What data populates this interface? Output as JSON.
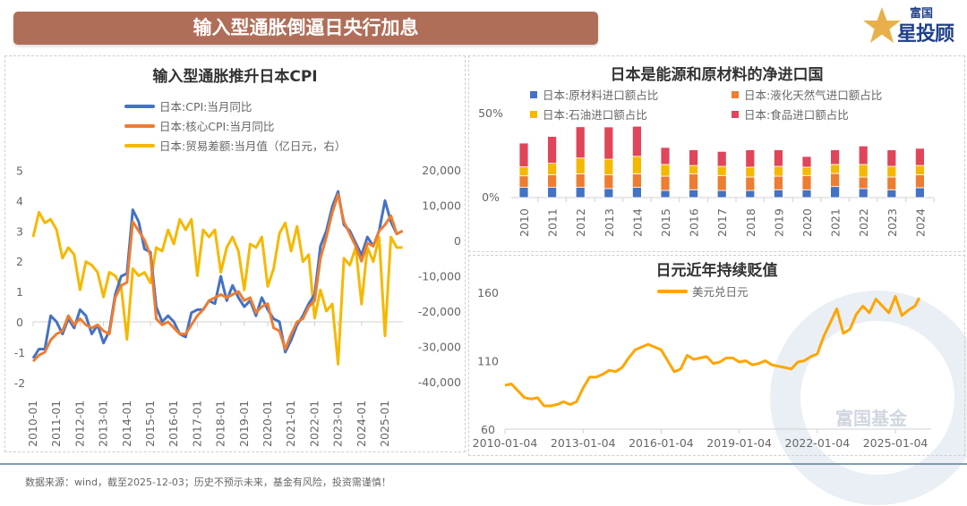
{
  "header": {
    "title": "输入型通胀倒逼日央行加息"
  },
  "logo": {
    "line1": "富国",
    "line2": "星投顾"
  },
  "watermark": "富国基金",
  "footer": "数据来源：wind，截至2025-12-03；历史不预示未来，基金有风险，投资需谨慎！",
  "colors": {
    "cpi": "#4472c4",
    "core": "#ed7d31",
    "trade": "#f5b800",
    "raw": "#4472c4",
    "lng": "#ed7d31",
    "oil": "#f5b800",
    "food": "#e0455a",
    "usdjpy": "#ffa500"
  },
  "chart_data": [
    {
      "type": "line",
      "title": "输入型通胀推升日本CPI",
      "legend": [
        "日本:CPI:当月同比",
        "日本:核心CPI:当月同比",
        "日本:贸易差额:当月值（亿日元，右）"
      ],
      "x_ticks": [
        "2010-01",
        "2011-01",
        "2012-01",
        "2013-01",
        "2014-01",
        "2015-01",
        "2016-01",
        "2017-01",
        "2018-01",
        "2019-01",
        "2020-01",
        "2021-01",
        "2022-01",
        "2023-01",
        "2024-01",
        "2025-01"
      ],
      "y_left_ticks": [
        "5",
        "4",
        "3",
        "2",
        "1",
        "0",
        "-1",
        "-2"
      ],
      "y_left_lim": [
        -2,
        5
      ],
      "y_right_ticks": [
        "20,000",
        "10,000",
        "0",
        "-10,000",
        "-20,000",
        "-30,000",
        "-40,000"
      ],
      "y_right_lim": [
        -40000,
        20000
      ],
      "x": [
        "2010-01",
        "2010-04",
        "2010-07",
        "2010-10",
        "2011-01",
        "2011-04",
        "2011-07",
        "2011-10",
        "2012-01",
        "2012-04",
        "2012-07",
        "2012-10",
        "2013-01",
        "2013-04",
        "2013-07",
        "2013-10",
        "2014-01",
        "2014-04",
        "2014-07",
        "2014-10",
        "2015-01",
        "2015-04",
        "2015-07",
        "2015-10",
        "2016-01",
        "2016-04",
        "2016-07",
        "2016-10",
        "2017-01",
        "2017-04",
        "2017-07",
        "2017-10",
        "2018-01",
        "2018-04",
        "2018-07",
        "2018-10",
        "2019-01",
        "2019-04",
        "2019-07",
        "2019-10",
        "2020-01",
        "2020-04",
        "2020-07",
        "2020-10",
        "2021-01",
        "2021-04",
        "2021-07",
        "2021-10",
        "2022-01",
        "2022-04",
        "2022-07",
        "2022-10",
        "2023-01",
        "2023-04",
        "2023-07",
        "2023-10",
        "2024-01",
        "2024-04",
        "2024-07",
        "2024-10",
        "2025-01",
        "2025-04",
        "2025-07",
        "2025-10"
      ],
      "series": [
        {
          "name": "日本:CPI:当月同比",
          "axis": "left",
          "values": [
            -1.2,
            -0.9,
            -0.9,
            0.2,
            0.0,
            -0.4,
            0.1,
            -0.2,
            0.4,
            0.2,
            -0.4,
            -0.1,
            -0.7,
            -0.3,
            0.9,
            1.5,
            1.6,
            3.7,
            3.3,
            2.4,
            2.3,
            0.5,
            0.0,
            0.2,
            0.0,
            -0.4,
            -0.5,
            0.3,
            0.4,
            0.4,
            0.7,
            0.6,
            1.5,
            0.7,
            1.2,
            0.8,
            0.5,
            0.7,
            0.2,
            0.8,
            0.4,
            0.1,
            0.0,
            -1.0,
            -0.6,
            -0.1,
            0.2,
            0.6,
            0.9,
            2.5,
            3.0,
            3.8,
            4.3,
            3.2,
            3.0,
            2.6,
            2.2,
            2.8,
            2.5,
            3.0,
            4.0,
            3.3,
            2.9,
            3.0
          ]
        },
        {
          "name": "日本:核心CPI:当月同比",
          "axis": "left",
          "values": [
            -1.3,
            -1.1,
            -1.0,
            -0.6,
            -0.4,
            -0.3,
            0.2,
            -0.1,
            0.1,
            -0.1,
            -0.2,
            -0.1,
            -0.3,
            -0.4,
            0.8,
            1.2,
            1.3,
            3.3,
            3.0,
            2.7,
            2.2,
            0.1,
            -0.1,
            0.0,
            -0.2,
            -0.4,
            -0.4,
            -0.1,
            0.2,
            0.4,
            0.7,
            0.8,
            0.9,
            0.8,
            0.9,
            1.0,
            0.7,
            0.8,
            0.3,
            0.5,
            0.6,
            -0.2,
            -0.3,
            -0.9,
            -0.4,
            0.0,
            0.1,
            0.5,
            0.7,
            2.1,
            2.8,
            3.6,
            4.2,
            3.3,
            2.9,
            2.5,
            2.0,
            2.6,
            2.5,
            3.0,
            3.2,
            3.5,
            2.9,
            3.0
          ]
        },
        {
          "name": "日本:贸易差额:当月值（亿日元，右）",
          "axis": "right",
          "values": [
            1000,
            8000,
            5000,
            6000,
            3000,
            -5000,
            -2000,
            -4000,
            -14000,
            -6000,
            -7000,
            -9000,
            -16000,
            -9000,
            -10000,
            -13000,
            -28000,
            -8000,
            -10000,
            -9000,
            -12000,
            -2000,
            -3000,
            3000,
            -1000,
            6000,
            3000,
            6000,
            -10000,
            3000,
            1000,
            3000,
            -9000,
            -2000,
            1000,
            -3000,
            -14000,
            -1000,
            -2000,
            1000,
            -13000,
            -8000,
            2000,
            5000,
            -3000,
            4000,
            -6000,
            -4000,
            -22000,
            -14000,
            -20000,
            -18000,
            -35000,
            -5000,
            -7000,
            -2000,
            -18000,
            -2000,
            -6000,
            1000,
            -27000,
            1000,
            -2000,
            -2000
          ]
        }
      ]
    },
    {
      "type": "bar",
      "stacked": true,
      "title": "日本是能源和原材料的净进口国",
      "categories": [
        "2010",
        "2011",
        "2012",
        "2013",
        "2014",
        "2015",
        "2016",
        "2017",
        "2018",
        "2019",
        "2020",
        "2021",
        "2022",
        "2023",
        "2024"
      ],
      "y_ticks": [
        "50%",
        "0%"
      ],
      "ylim": [
        0,
        50
      ],
      "series": [
        {
          "name": "日本:原材料进口额占比",
          "values": [
            6,
            6,
            6,
            5.3,
            6,
            4.2,
            4.6,
            4.2,
            4.2,
            4.6,
            4.6,
            6.5,
            5.3,
            4.6,
            5.8
          ]
        },
        {
          "name": "日本:液化天然气进口额占比",
          "values": [
            6.8,
            7.5,
            8,
            8.2,
            8,
            8.4,
            9.3,
            8.8,
            7.9,
            8,
            8.4,
            7.7,
            6.8,
            7.5,
            7.7
          ]
        },
        {
          "name": "日本:石油进口额占比",
          "values": [
            5.3,
            6.7,
            9.3,
            9.1,
            10.3,
            6.9,
            5,
            5.4,
            5.8,
            5.8,
            4.9,
            5.3,
            7.4,
            6.3,
            5.4
          ]
        },
        {
          "name": "日本:食品进口额占比",
          "values": [
            14,
            15.8,
            18.4,
            19,
            17.7,
            10,
            9.2,
            8.8,
            10.2,
            9.7,
            6.3,
            8.6,
            10.9,
            9.7,
            10.1
          ]
        }
      ]
    },
    {
      "type": "line",
      "title": "日元近年持续贬值",
      "legend": [
        "美元兑日元"
      ],
      "x_ticks": [
        "2010-01-04",
        "2013-01-04",
        "2016-01-04",
        "2019-01-04",
        "2022-01-04",
        "2025-01-04"
      ],
      "y_ticks": [
        "160",
        "110",
        "60"
      ],
      "ylim": [
        60,
        160
      ],
      "x": [
        "2010-01",
        "2010-04",
        "2010-07",
        "2010-10",
        "2011-01",
        "2011-04",
        "2011-07",
        "2011-10",
        "2012-01",
        "2012-04",
        "2012-07",
        "2012-10",
        "2013-01",
        "2013-04",
        "2013-07",
        "2013-10",
        "2014-01",
        "2014-04",
        "2014-07",
        "2014-10",
        "2015-01",
        "2015-04",
        "2015-07",
        "2015-10",
        "2016-01",
        "2016-04",
        "2016-07",
        "2016-10",
        "2017-01",
        "2017-04",
        "2017-07",
        "2017-10",
        "2018-01",
        "2018-04",
        "2018-07",
        "2018-10",
        "2019-01",
        "2019-04",
        "2019-07",
        "2019-10",
        "2020-01",
        "2020-04",
        "2020-07",
        "2020-10",
        "2021-01",
        "2021-04",
        "2021-07",
        "2021-10",
        "2022-01",
        "2022-04",
        "2022-07",
        "2022-10",
        "2023-01",
        "2023-04",
        "2023-07",
        "2023-10",
        "2024-01",
        "2024-04",
        "2024-07",
        "2024-10",
        "2025-01",
        "2025-04",
        "2025-07",
        "2025-10",
        "2025-12"
      ],
      "series": [
        {
          "name": "美元兑日元",
          "values": [
            92,
            93,
            88,
            83,
            82,
            83,
            77,
            77,
            78,
            80,
            78,
            80,
            90,
            98,
            98,
            100,
            103,
            102,
            105,
            112,
            118,
            120,
            122,
            120,
            118,
            110,
            102,
            104,
            114,
            111,
            112,
            113,
            108,
            109,
            112,
            112,
            109,
            110,
            107,
            108,
            110,
            107,
            106,
            105,
            104,
            109,
            110,
            113,
            115,
            128,
            138,
            148,
            130,
            133,
            144,
            150,
            145,
            155,
            150,
            145,
            157,
            143,
            147,
            150,
            156
          ]
        }
      ]
    }
  ]
}
